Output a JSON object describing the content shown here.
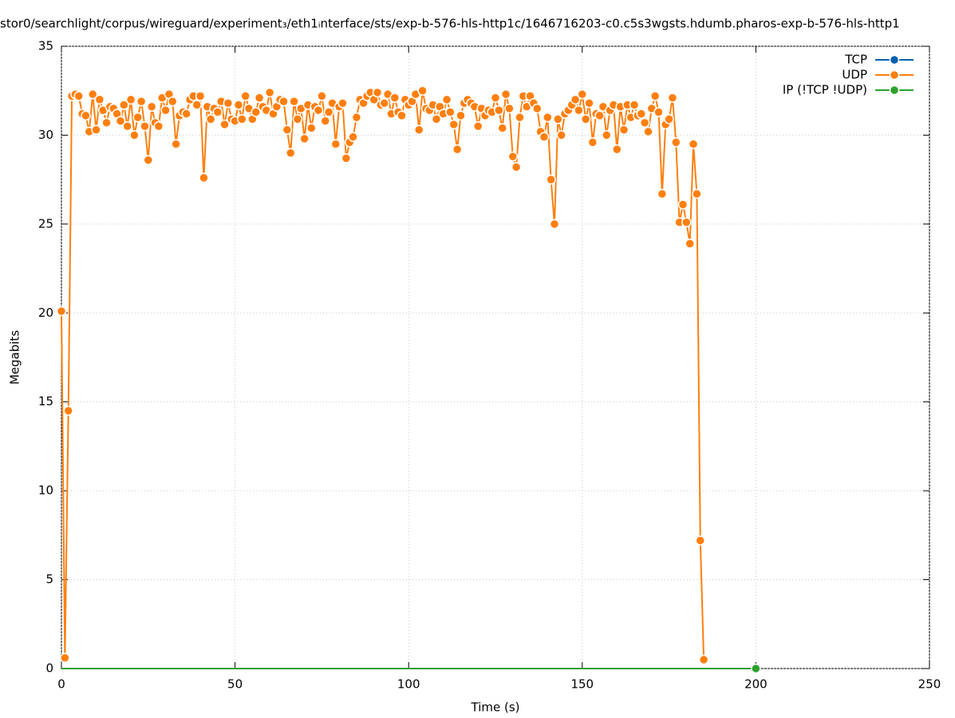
{
  "chart_data": {
    "type": "line",
    "title": "stor0/searchlight/corpus/wireguard/experiment₃/eth1ᵢnterface/sts/exp-b-576-hls-http1c/1646716203-c0.c5s3wgsts.hdumb.pharos-exp-b-576-hls-http1",
    "xlabel": "Time (s)",
    "ylabel": "Megabits",
    "xlim": [
      0,
      250
    ],
    "xticks": [
      0,
      50,
      100,
      150,
      200,
      250
    ],
    "ylim": [
      0,
      35
    ],
    "yticks": [
      0,
      5,
      10,
      15,
      20,
      25,
      30,
      35
    ],
    "grid": true,
    "legend": "top-right",
    "series": [
      {
        "name": "TCP",
        "color": "#0060ad",
        "x": [],
        "values": []
      },
      {
        "name": "UDP",
        "color": "#ff7f0e",
        "x": [
          0,
          1,
          2,
          3,
          4,
          5,
          6,
          7,
          8,
          9,
          10,
          11,
          12,
          13,
          14,
          15,
          16,
          17,
          18,
          19,
          20,
          21,
          22,
          23,
          24,
          25,
          26,
          27,
          28,
          29,
          30,
          31,
          32,
          33,
          34,
          35,
          36,
          37,
          38,
          39,
          40,
          41,
          42,
          43,
          44,
          45,
          46,
          47,
          48,
          49,
          50,
          51,
          52,
          53,
          54,
          55,
          56,
          57,
          58,
          59,
          60,
          61,
          62,
          63,
          64,
          65,
          66,
          67,
          68,
          69,
          70,
          71,
          72,
          73,
          74,
          75,
          76,
          77,
          78,
          79,
          80,
          81,
          82,
          83,
          84,
          85,
          86,
          87,
          88,
          89,
          90,
          91,
          92,
          93,
          94,
          95,
          96,
          97,
          98,
          99,
          100,
          101,
          102,
          103,
          104,
          105,
          106,
          107,
          108,
          109,
          110,
          111,
          112,
          113,
          114,
          115,
          116,
          117,
          118,
          119,
          120,
          121,
          122,
          123,
          124,
          125,
          126,
          127,
          128,
          129,
          130,
          131,
          132,
          133,
          134,
          135,
          136,
          137,
          138,
          139,
          140,
          141,
          142,
          143,
          144,
          145,
          146,
          147,
          148,
          149,
          150,
          151,
          152,
          153,
          154,
          155,
          156,
          157,
          158,
          159,
          160,
          161,
          162,
          163,
          164,
          165,
          166,
          167,
          168,
          169,
          170,
          171,
          172,
          173,
          174,
          175,
          176,
          177,
          178,
          179,
          180,
          181,
          182,
          183,
          184,
          185
        ],
        "values": [
          20.1,
          0.6,
          14.5,
          32.2,
          32.3,
          32.2,
          31.2,
          31.1,
          30.2,
          32.3,
          30.3,
          32.0,
          31.4,
          30.7,
          31.6,
          31.5,
          31.2,
          30.8,
          31.7,
          30.5,
          32.0,
          30.0,
          31.0,
          31.9,
          30.5,
          28.6,
          31.6,
          30.7,
          30.5,
          32.1,
          31.4,
          32.3,
          31.9,
          29.5,
          31.1,
          31.3,
          31.2,
          32.0,
          32.2,
          31.7,
          32.2,
          27.6,
          31.6,
          30.9,
          31.5,
          31.3,
          31.9,
          30.6,
          31.8,
          30.9,
          30.8,
          31.7,
          30.9,
          32.2,
          31.5,
          30.9,
          31.3,
          32.1,
          31.6,
          31.4,
          32.4,
          31.2,
          31.6,
          32.0,
          31.9,
          30.3,
          29.0,
          31.9,
          30.9,
          31.5,
          29.8,
          31.7,
          30.4,
          31.6,
          31.4,
          32.2,
          30.8,
          31.3,
          31.8,
          29.5,
          31.6,
          31.8,
          28.7,
          29.6,
          29.9,
          31.0,
          32.0,
          31.8,
          32.2,
          32.4,
          32.0,
          32.4,
          31.7,
          31.8,
          32.3,
          31.2,
          32.1,
          31.3,
          31.1,
          32.0,
          31.7,
          31.9,
          32.3,
          30.3,
          32.5,
          31.5,
          31.4,
          31.7,
          30.9,
          31.6,
          31.2,
          32.0,
          31.3,
          30.6,
          29.2,
          31.1,
          31.8,
          32.0,
          31.8,
          31.6,
          30.5,
          31.5,
          31.1,
          31.4,
          31.3,
          32.1,
          31.4,
          30.4,
          32.3,
          31.5,
          28.8,
          28.2,
          31.0,
          32.2,
          31.6,
          32.2,
          31.8,
          31.5,
          30.2,
          29.9,
          31.0,
          27.5,
          25.0,
          30.9,
          30.0,
          31.2,
          31.4,
          31.7,
          32.0,
          31.4,
          32.3,
          30.9,
          31.8,
          29.6,
          31.2,
          31.1,
          31.6,
          30.0,
          31.4,
          31.7,
          29.2,
          31.6,
          30.3,
          31.7,
          31.0,
          31.7,
          31.1,
          31.2,
          30.7,
          30.2,
          31.5,
          32.2,
          31.3,
          26.7,
          30.6,
          30.9,
          32.1,
          29.6,
          25.1,
          26.1,
          25.1,
          23.9,
          29.5,
          26.7,
          7.2,
          0.5
        ]
      },
      {
        "name": "IP (!TCP  !UDP)",
        "color": "#2ca02c",
        "x": [
          0,
          200
        ],
        "values": [
          0,
          0
        ]
      }
    ]
  }
}
